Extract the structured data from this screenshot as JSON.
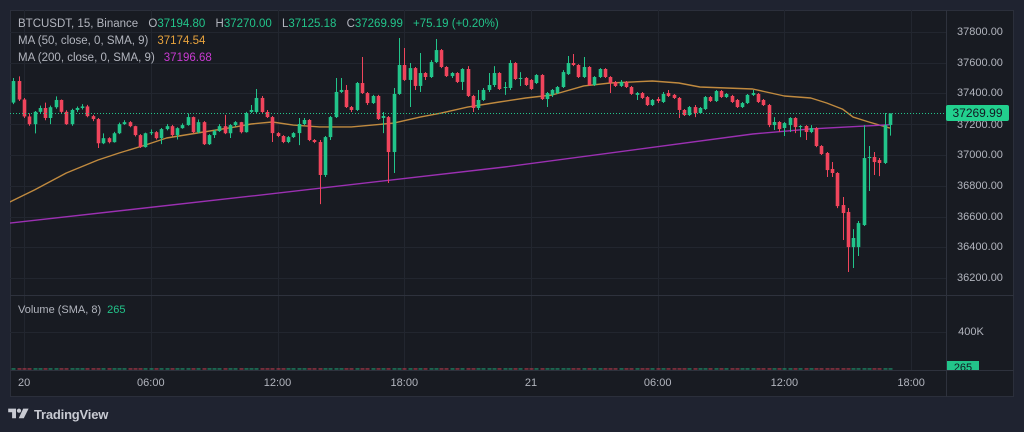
{
  "header": {
    "symbol": "BTCUSDT, 15, Binance",
    "ohlc": {
      "o_label": "O",
      "o": "37194.80",
      "h_label": "H",
      "h": "37270.00",
      "l_label": "L",
      "l": "37125.18",
      "c_label": "C",
      "c": "37269.99"
    },
    "change": "+75.19 (+0.20%)"
  },
  "indicators": [
    {
      "label": "MA (50, close, 0, SMA, 9)",
      "value": "37174.54"
    },
    {
      "label": "MA (200, close, 0, SMA, 9)",
      "value": "37196.68"
    }
  ],
  "price_axis": {
    "ticks": [
      "37800.00",
      "37600.00",
      "37400.00",
      "37200.00",
      "37000.00",
      "36800.00",
      "36600.00",
      "36400.00",
      "36200.00"
    ],
    "last_price": "37269.99"
  },
  "volume_pane": {
    "label": "Volume (SMA, 8)",
    "value": "265",
    "axis_label": "400K",
    "last_volume": "265"
  },
  "time_axis": {
    "labels": [
      "20",
      "06:00",
      "12:00",
      "18:00",
      "21",
      "06:00",
      "12:00",
      "18:00"
    ]
  },
  "footer": {
    "brand": "TradingView"
  },
  "colors": {
    "background": "#1f2330",
    "pane": "#181b22",
    "up": "#22c48a",
    "down": "#f0455c",
    "price_label_bg": "#22d08e",
    "ma50": "#e8a33d",
    "ma200": "#c83bd1",
    "ma50_line": "#c08a3f",
    "ma200_line": "#9b30b2",
    "grid": "#22262f",
    "divider": "#2e323d"
  },
  "chart_data": {
    "type": "candlestick",
    "title": "BTCUSDT, 15, Binance",
    "interval": "15",
    "xlabel": "",
    "ylabel": "",
    "ylim": [
      36091,
      37941
    ],
    "xlim": [
      -0.66,
      176.6
    ],
    "grid": true,
    "legend_position": "top-left",
    "y_ticks": [
      37800,
      37600,
      37400,
      37200,
      37000,
      36800,
      36600,
      36400,
      36200
    ],
    "x_ticks": [
      {
        "label": "20",
        "index": 2
      },
      {
        "label": "06:00",
        "index": 26
      },
      {
        "label": "12:00",
        "index": 50
      },
      {
        "label": "18:00",
        "index": 74
      },
      {
        "label": "21",
        "index": 98
      },
      {
        "label": "06:00",
        "index": 122
      },
      {
        "label": "12:00",
        "index": 146
      },
      {
        "label": "18:00",
        "index": 170
      }
    ],
    "last_price": 37269.99,
    "last_bar": {
      "open": 37194.8,
      "high": 37270.0,
      "low": 37125.18,
      "close": 37269.99,
      "change": 75.19,
      "change_pct": 0.2
    },
    "candles_format": [
      "open",
      "high",
      "low",
      "close"
    ],
    "candles": [
      [
        37340,
        37500,
        37330,
        37480
      ],
      [
        37480,
        37510,
        37350,
        37360
      ],
      [
        37360,
        37370,
        37240,
        37250
      ],
      [
        37250,
        37270,
        37190,
        37200
      ],
      [
        37200,
        37285,
        37140,
        37280
      ],
      [
        37280,
        37320,
        37270,
        37305
      ],
      [
        37305,
        37340,
        37225,
        37240
      ],
      [
        37240,
        37320,
        37200,
        37310
      ],
      [
        37310,
        37380,
        37300,
        37357
      ],
      [
        37357,
        37360,
        37270,
        37280
      ],
      [
        37280,
        37290,
        37195,
        37200
      ],
      [
        37200,
        37300,
        37190,
        37292
      ],
      [
        37292,
        37315,
        37280,
        37305
      ],
      [
        37305,
        37330,
        37295,
        37315
      ],
      [
        37315,
        37325,
        37245,
        37252
      ],
      [
        37252,
        37260,
        37220,
        37233
      ],
      [
        37233,
        37240,
        37045,
        37076
      ],
      [
        37076,
        37140,
        37070,
        37109
      ],
      [
        37109,
        37115,
        37075,
        37083
      ],
      [
        37083,
        37150,
        37080,
        37141
      ],
      [
        37141,
        37210,
        37135,
        37200
      ],
      [
        37200,
        37225,
        37195,
        37213
      ],
      [
        37213,
        37220,
        37180,
        37187
      ],
      [
        37187,
        37190,
        37120,
        37129
      ],
      [
        37129,
        37135,
        37045,
        37051
      ],
      [
        37051,
        37145,
        37048,
        37141
      ],
      [
        37141,
        37165,
        37130,
        37148
      ],
      [
        37148,
        37155,
        37100,
        37109
      ],
      [
        37109,
        37175,
        37070,
        37168
      ],
      [
        37168,
        37200,
        37160,
        37187
      ],
      [
        37187,
        37195,
        37120,
        37129
      ],
      [
        37129,
        37180,
        37100,
        37174
      ],
      [
        37174,
        37205,
        37170,
        37194
      ],
      [
        37194,
        37270,
        37190,
        37246
      ],
      [
        37246,
        37250,
        37140,
        37148
      ],
      [
        37148,
        37230,
        37140,
        37213
      ],
      [
        37213,
        37220,
        37065,
        37070
      ],
      [
        37070,
        37135,
        37065,
        37129
      ],
      [
        37129,
        37165,
        37110,
        37155
      ],
      [
        37155,
        37200,
        37150,
        37187
      ],
      [
        37187,
        37260,
        37135,
        37141
      ],
      [
        37141,
        37200,
        37110,
        37194
      ],
      [
        37194,
        37220,
        37185,
        37213
      ],
      [
        37213,
        37215,
        37140,
        37148
      ],
      [
        37148,
        37280,
        37145,
        37272
      ],
      [
        37279,
        37324,
        37272,
        37292
      ],
      [
        37279,
        37428,
        37272,
        37370
      ],
      [
        37370,
        37383,
        37272,
        37279
      ],
      [
        37279,
        37292,
        37240,
        37246
      ],
      [
        37246,
        37253,
        37084,
        37142
      ],
      [
        37142,
        37148,
        37116,
        37123
      ],
      [
        37123,
        37129,
        37077,
        37084
      ],
      [
        37084,
        37123,
        37077,
        37116
      ],
      [
        37116,
        37148,
        37110,
        37142
      ],
      [
        37142,
        37240,
        37064,
        37201
      ],
      [
        37201,
        37240,
        37194,
        37227
      ],
      [
        37227,
        37233,
        37090,
        37097
      ],
      [
        37097,
        37103,
        37077,
        37084
      ],
      [
        37084,
        37097,
        36681,
        36870
      ],
      [
        36870,
        37123,
        36857,
        37116
      ],
      [
        37116,
        37253,
        37097,
        37246
      ],
      [
        37246,
        37500,
        37240,
        37409
      ],
      [
        37409,
        37500,
        37402,
        37422
      ],
      [
        37422,
        37454,
        37305,
        37311
      ],
      [
        37311,
        37318,
        37279,
        37292
      ],
      [
        37292,
        37474,
        37285,
        37467
      ],
      [
        37467,
        37636,
        37396,
        37402
      ],
      [
        37402,
        37409,
        37324,
        37337
      ],
      [
        37337,
        37390,
        37331,
        37383
      ],
      [
        37383,
        37390,
        37227,
        37233
      ],
      [
        37240,
        37279,
        37142,
        37253
      ],
      [
        37246,
        37253,
        36818,
        37019
      ],
      [
        37019,
        37435,
        36883,
        37396
      ],
      [
        37396,
        37759,
        37390,
        37584
      ],
      [
        37584,
        37694,
        37480,
        37487
      ],
      [
        37487,
        37597,
        37311,
        37564
      ],
      [
        37564,
        37571,
        37422,
        37448
      ],
      [
        37448,
        37662,
        37409,
        37532
      ],
      [
        37532,
        37538,
        37487,
        37506
      ],
      [
        37506,
        37616,
        37500,
        37603
      ],
      [
        37603,
        37753,
        37597,
        37681
      ],
      [
        37681,
        37688,
        37564,
        37571
      ],
      [
        37571,
        37577,
        37506,
        37512
      ],
      [
        37512,
        37538,
        37500,
        37532
      ],
      [
        37532,
        37538,
        37467,
        37474
      ],
      [
        37474,
        37564,
        37422,
        37558
      ],
      [
        37558,
        37577,
        37376,
        37383
      ],
      [
        37383,
        37390,
        37279,
        37305
      ],
      [
        37305,
        37422,
        37292,
        37357
      ],
      [
        37357,
        37435,
        37350,
        37422
      ],
      [
        37422,
        37532,
        37409,
        37454
      ],
      [
        37454,
        37577,
        37441,
        37532
      ],
      [
        37532,
        37538,
        37422,
        37428
      ],
      [
        37435,
        37474,
        37390,
        37441
      ],
      [
        37435,
        37616,
        37422,
        37597
      ],
      [
        37597,
        37603,
        37487,
        37493
      ],
      [
        37493,
        37538,
        37448,
        37500
      ],
      [
        37500,
        37506,
        37448,
        37454
      ],
      [
        37487,
        37493,
        37422,
        37428
      ],
      [
        37467,
        37525,
        37461,
        37519
      ],
      [
        37519,
        37525,
        37357,
        37363
      ],
      [
        37363,
        37409,
        37311,
        37402
      ],
      [
        37390,
        37428,
        37376,
        37422
      ],
      [
        37402,
        37448,
        37396,
        37441
      ],
      [
        37441,
        37551,
        37435,
        37538
      ],
      [
        37525,
        37642,
        37519,
        37597
      ],
      [
        37597,
        37655,
        37577,
        37584
      ],
      [
        37584,
        37590,
        37500,
        37506
      ],
      [
        37506,
        37636,
        37500,
        37571
      ],
      [
        37571,
        37577,
        37448,
        37454
      ],
      [
        37454,
        37512,
        37448,
        37506
      ],
      [
        37506,
        37564,
        37500,
        37558
      ],
      [
        37558,
        37564,
        37500,
        37506
      ],
      [
        37506,
        37512,
        37402,
        37467
      ],
      [
        37474,
        37480,
        37441,
        37448
      ],
      [
        37448,
        37487,
        37441,
        37474
      ],
      [
        37474,
        37480,
        37435,
        37441
      ],
      [
        37441,
        37448,
        37390,
        37396
      ],
      [
        37390,
        37409,
        37357,
        37402
      ],
      [
        37402,
        37409,
        37363,
        37370
      ],
      [
        37376,
        37383,
        37318,
        37324
      ],
      [
        37324,
        37363,
        37318,
        37357
      ],
      [
        37363,
        37376,
        37337,
        37350
      ],
      [
        37344,
        37409,
        37337,
        37396
      ],
      [
        37402,
        37422,
        37376,
        37383
      ],
      [
        37390,
        37396,
        37363,
        37370
      ],
      [
        37370,
        37376,
        37240,
        37292
      ],
      [
        37292,
        37298,
        37253,
        37259
      ],
      [
        37259,
        37318,
        37253,
        37311
      ],
      [
        37311,
        37324,
        37246,
        37272
      ],
      [
        37272,
        37311,
        37266,
        37305
      ],
      [
        37298,
        37383,
        37292,
        37376
      ],
      [
        37376,
        37383,
        37344,
        37350
      ],
      [
        37350,
        37422,
        37344,
        37415
      ],
      [
        37415,
        37422,
        37370,
        37376
      ],
      [
        37376,
        37402,
        37370,
        37396
      ],
      [
        37383,
        37390,
        37337,
        37344
      ],
      [
        37357,
        37363,
        37305,
        37311
      ],
      [
        37311,
        37344,
        37305,
        37337
      ],
      [
        37337,
        37396,
        37331,
        37390
      ],
      [
        37390,
        37422,
        37383,
        37402
      ],
      [
        37396,
        37402,
        37337,
        37344
      ],
      [
        37357,
        37363,
        37318,
        37324
      ],
      [
        37324,
        37331,
        37181,
        37194
      ],
      [
        37194,
        37246,
        37162,
        37214
      ],
      [
        37214,
        37220,
        37149,
        37168
      ],
      [
        37175,
        37214,
        37123,
        37207
      ],
      [
        37194,
        37246,
        37149,
        37240
      ],
      [
        37240,
        37246,
        37142,
        37181
      ],
      [
        37181,
        37194,
        37116,
        37188
      ],
      [
        37188,
        37194,
        37097,
        37149
      ],
      [
        37149,
        37194,
        37142,
        37175
      ],
      [
        37175,
        37181,
        37051,
        37058
      ],
      [
        37058,
        37064,
        37000,
        37006
      ],
      [
        37013,
        37019,
        36857,
        36902
      ],
      [
        36909,
        36954,
        36857,
        36883
      ],
      [
        36883,
        36889,
        36655,
        36668
      ],
      [
        36675,
        36727,
        36448,
        36623
      ],
      [
        36630,
        36656,
        36240,
        36402
      ],
      [
        36402,
        36519,
        36266,
        36461
      ],
      [
        36402,
        36571,
        36344,
        36558
      ],
      [
        36545,
        37194,
        36539,
        36980
      ],
      [
        36980,
        37058,
        36766,
        36987
      ],
      [
        36987,
        37019,
        36870,
        36954
      ],
      [
        36967,
        36980,
        36863,
        36948
      ],
      [
        36948,
        37272,
        36941,
        37194
      ],
      [
        37194.8,
        37270.0,
        37125.18,
        37269.99
      ]
    ],
    "series": [
      {
        "name": "MA (50, close, 0, SMA, 9)",
        "type": "line",
        "last": 37174.54,
        "points": [
          [
            -0.7,
            36695
          ],
          [
            4,
            36773
          ],
          [
            10,
            36883
          ],
          [
            16,
            36967
          ],
          [
            20,
            37013
          ],
          [
            25,
            37065
          ],
          [
            29,
            37110
          ],
          [
            36,
            37149
          ],
          [
            42,
            37182
          ],
          [
            45,
            37201
          ],
          [
            49,
            37214
          ],
          [
            53,
            37194
          ],
          [
            58,
            37182
          ],
          [
            64,
            37182
          ],
          [
            72,
            37207
          ],
          [
            77,
            37246
          ],
          [
            81,
            37272
          ],
          [
            86,
            37311
          ],
          [
            92,
            37344
          ],
          [
            97,
            37370
          ],
          [
            102,
            37389
          ],
          [
            108,
            37448
          ],
          [
            113,
            37467
          ],
          [
            121,
            37480
          ],
          [
            126,
            37467
          ],
          [
            130,
            37441
          ],
          [
            140,
            37428
          ],
          [
            146,
            37383
          ],
          [
            151,
            37370
          ],
          [
            154,
            37337
          ],
          [
            157,
            37298
          ],
          [
            159,
            37246
          ],
          [
            162,
            37214
          ],
          [
            166,
            37174.54
          ]
        ]
      },
      {
        "name": "MA (200, close, 0, SMA, 9)",
        "type": "line",
        "last": 37196.68,
        "points": [
          [
            -0.7,
            36558
          ],
          [
            45,
            36733
          ],
          [
            93,
            36922
          ],
          [
            140,
            37136
          ],
          [
            151,
            37169
          ],
          [
            166,
            37196.68
          ]
        ]
      }
    ],
    "volume": {
      "name": "Volume (SMA, 8)",
      "last": 265,
      "y_tick": "400K"
    }
  }
}
